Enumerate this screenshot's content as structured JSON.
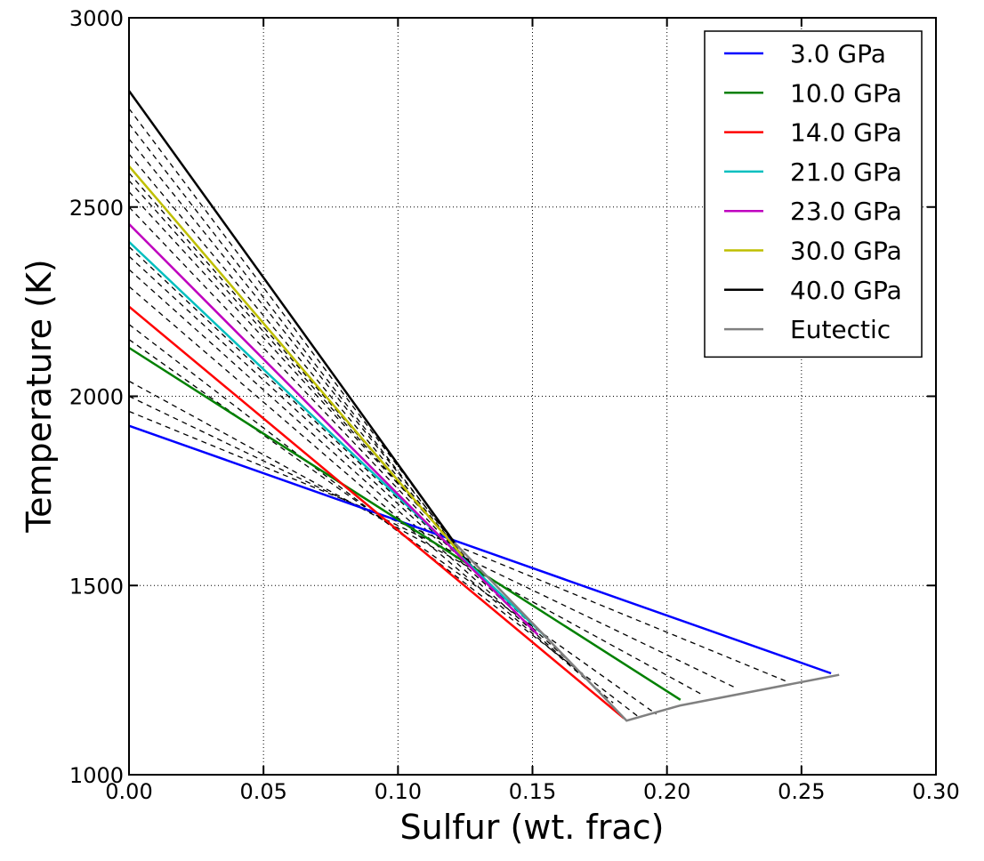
{
  "chart_data": {
    "type": "line",
    "xlabel": "Sulfur (wt. frac)",
    "ylabel": "Temperature (K)",
    "xlim": [
      0.0,
      0.3
    ],
    "ylim": [
      1000,
      3000
    ],
    "xticks": [
      0.0,
      0.05,
      0.1,
      0.15,
      0.2,
      0.25,
      0.3
    ],
    "xtick_labels": [
      "0.00",
      "0.05",
      "0.10",
      "0.15",
      "0.20",
      "0.25",
      "0.30"
    ],
    "yticks": [
      1000,
      1500,
      2000,
      2500,
      3000
    ],
    "ytick_labels": [
      "1000",
      "1500",
      "2000",
      "2500",
      "3000"
    ],
    "grid": true,
    "legend_position": "top-right",
    "series": [
      {
        "name": "3.0 GPa",
        "color": "#0000ff",
        "x": [
          0.0,
          0.261
        ],
        "y": [
          1922,
          1268
        ]
      },
      {
        "name": "10.0 GPa",
        "color": "#008000",
        "x": [
          0.0,
          0.205
        ],
        "y": [
          2128,
          1198
        ]
      },
      {
        "name": "14.0 GPa",
        "color": "#ff0000",
        "x": [
          0.0,
          0.184
        ],
        "y": [
          2237,
          1149
        ]
      },
      {
        "name": "21.0 GPa",
        "color": "#00bfbf",
        "x": [
          0.0,
          0.155
        ],
        "y": [
          2408,
          1364
        ]
      },
      {
        "name": "23.0 GPa",
        "color": "#bf00bf",
        "x": [
          0.0,
          0.152
        ],
        "y": [
          2455,
          1370
        ]
      },
      {
        "name": "30.0 GPa",
        "color": "#bfbf00",
        "x": [
          0.0,
          0.124
        ],
        "y": [
          2608,
          1578
        ]
      },
      {
        "name": "40.0 GPa",
        "color": "#000000",
        "x": [
          0.0,
          0.121
        ],
        "y": [
          2807,
          1613
        ]
      },
      {
        "name": "Eutectic",
        "color": "#808080",
        "x": [
          0.121,
          0.155,
          0.185,
          0.205,
          0.264
        ],
        "y": [
          1613,
          1364,
          1143,
          1183,
          1264
        ]
      }
    ],
    "dashed_lines": {
      "color": "#000000",
      "lines": [
        {
          "x": [
            0.0,
            0.244
          ],
          "y": [
            1960,
            1248
          ]
        },
        {
          "x": [
            0.0,
            0.226
          ],
          "y": [
            2000,
            1228
          ]
        },
        {
          "x": [
            0.0,
            0.213
          ],
          "y": [
            2040,
            1212
          ]
        },
        {
          "x": [
            0.0,
            0.196
          ],
          "y": [
            2150,
            1160
          ]
        },
        {
          "x": [
            0.0,
            0.19
          ],
          "y": [
            2190,
            1150
          ]
        },
        {
          "x": [
            0.0,
            0.18
          ],
          "y": [
            2290,
            1190
          ]
        },
        {
          "x": [
            0.0,
            0.172
          ],
          "y": [
            2335,
            1240
          ]
        },
        {
          "x": [
            0.0,
            0.165
          ],
          "y": [
            2370,
            1290
          ]
        },
        {
          "x": [
            0.0,
            0.159
          ],
          "y": [
            2395,
            1335
          ]
        },
        {
          "x": [
            0.0,
            0.145
          ],
          "y": [
            2500,
            1420
          ]
        },
        {
          "x": [
            0.0,
            0.14
          ],
          "y": [
            2540,
            1460
          ]
        },
        {
          "x": [
            0.0,
            0.134
          ],
          "y": [
            2570,
            1500
          ]
        },
        {
          "x": [
            0.0,
            0.129
          ],
          "y": [
            2590,
            1540
          ]
        },
        {
          "x": [
            0.0,
            0.123
          ],
          "y": [
            2640,
            1590
          ]
        },
        {
          "x": [
            0.0,
            0.123
          ],
          "y": [
            2680,
            1595
          ]
        },
        {
          "x": [
            0.0,
            0.122
          ],
          "y": [
            2720,
            1600
          ]
        },
        {
          "x": [
            0.0,
            0.122
          ],
          "y": [
            2760,
            1607
          ]
        }
      ]
    }
  }
}
